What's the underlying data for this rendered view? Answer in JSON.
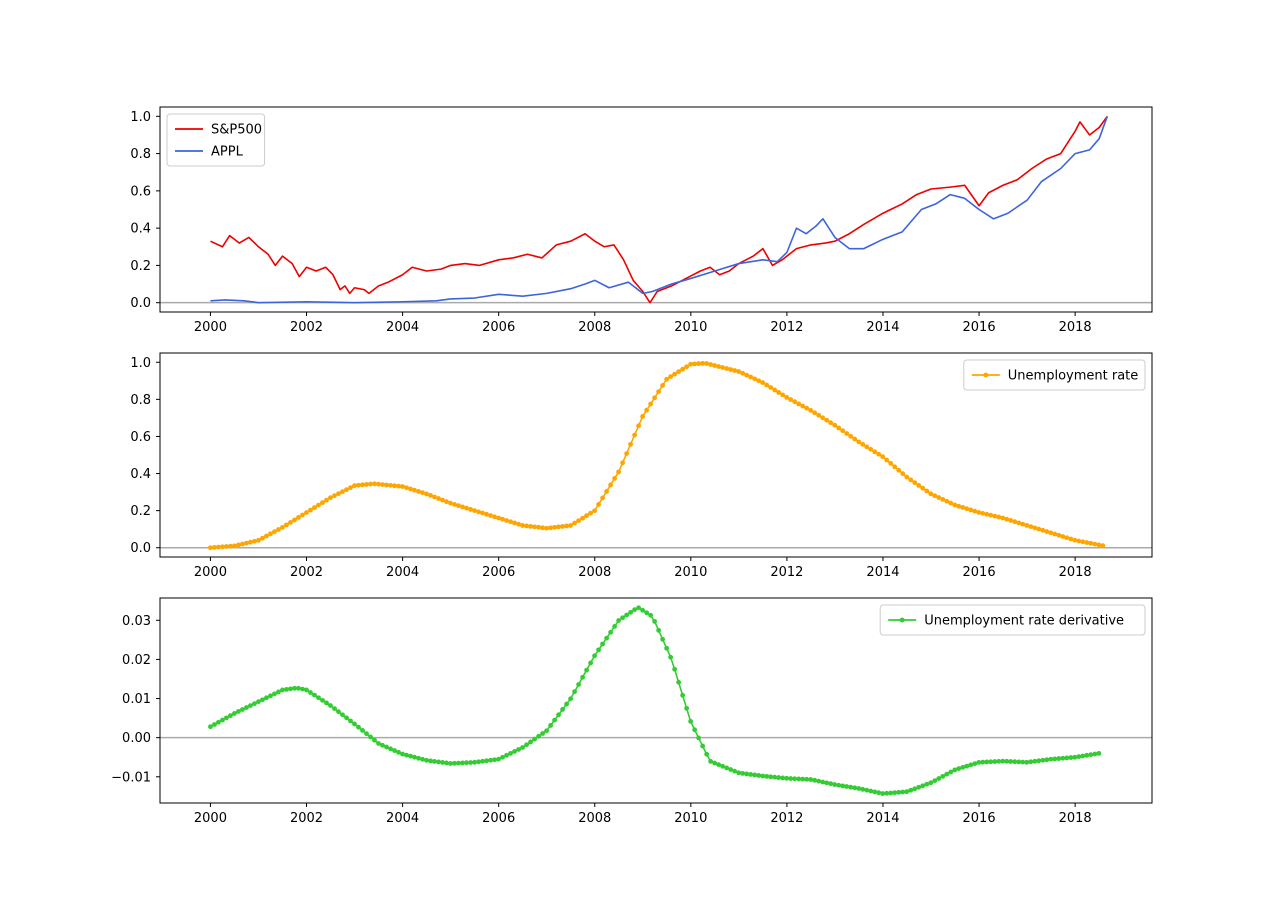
{
  "chart_data": [
    {
      "type": "line",
      "x_range": [
        1998.95,
        2019.6
      ],
      "ylim": [
        -0.05,
        1.05
      ],
      "x_ticks": [
        2000,
        2002,
        2004,
        2006,
        2008,
        2010,
        2012,
        2014,
        2016,
        2018
      ],
      "x_tick_labels": [
        "2000",
        "2002",
        "2004",
        "2006",
        "2008",
        "2010",
        "2012",
        "2014",
        "2016",
        "2018"
      ],
      "y_ticks": [
        0.0,
        0.2,
        0.4,
        0.6,
        0.8,
        1.0
      ],
      "y_tick_labels": [
        "0.0",
        "0.2",
        "0.4",
        "0.6",
        "0.8",
        "1.0"
      ],
      "reference_line_y": 0,
      "reference_line_color": "#aaaaaa",
      "legend_position": "upper-left",
      "series": [
        {
          "name": "S&P500",
          "color": "#ee0000",
          "marker": "none",
          "points": [
            [
              2000.0,
              0.33
            ],
            [
              2000.25,
              0.3
            ],
            [
              2000.4,
              0.36
            ],
            [
              2000.6,
              0.32
            ],
            [
              2000.8,
              0.35
            ],
            [
              2001.0,
              0.3
            ],
            [
              2001.2,
              0.26
            ],
            [
              2001.35,
              0.2
            ],
            [
              2001.5,
              0.25
            ],
            [
              2001.7,
              0.21
            ],
            [
              2001.85,
              0.14
            ],
            [
              2002.0,
              0.19
            ],
            [
              2002.2,
              0.17
            ],
            [
              2002.4,
              0.19
            ],
            [
              2002.55,
              0.15
            ],
            [
              2002.7,
              0.07
            ],
            [
              2002.8,
              0.09
            ],
            [
              2002.9,
              0.05
            ],
            [
              2003.0,
              0.08
            ],
            [
              2003.2,
              0.07
            ],
            [
              2003.3,
              0.05
            ],
            [
              2003.5,
              0.09
            ],
            [
              2003.7,
              0.11
            ],
            [
              2004.0,
              0.15
            ],
            [
              2004.2,
              0.19
            ],
            [
              2004.5,
              0.17
            ],
            [
              2004.8,
              0.18
            ],
            [
              2005.0,
              0.2
            ],
            [
              2005.3,
              0.21
            ],
            [
              2005.6,
              0.2
            ],
            [
              2006.0,
              0.23
            ],
            [
              2006.3,
              0.24
            ],
            [
              2006.6,
              0.26
            ],
            [
              2006.9,
              0.24
            ],
            [
              2007.2,
              0.31
            ],
            [
              2007.5,
              0.33
            ],
            [
              2007.8,
              0.37
            ],
            [
              2008.0,
              0.33
            ],
            [
              2008.2,
              0.3
            ],
            [
              2008.4,
              0.31
            ],
            [
              2008.6,
              0.23
            ],
            [
              2008.8,
              0.12
            ],
            [
              2009.0,
              0.06
            ],
            [
              2009.15,
              0.0
            ],
            [
              2009.3,
              0.06
            ],
            [
              2009.6,
              0.09
            ],
            [
              2009.9,
              0.13
            ],
            [
              2010.2,
              0.17
            ],
            [
              2010.4,
              0.19
            ],
            [
              2010.6,
              0.15
            ],
            [
              2010.8,
              0.17
            ],
            [
              2011.0,
              0.21
            ],
            [
              2011.3,
              0.25
            ],
            [
              2011.5,
              0.29
            ],
            [
              2011.7,
              0.2
            ],
            [
              2011.9,
              0.23
            ],
            [
              2012.2,
              0.29
            ],
            [
              2012.5,
              0.31
            ],
            [
              2012.8,
              0.32
            ],
            [
              2013.0,
              0.33
            ],
            [
              2013.3,
              0.37
            ],
            [
              2013.6,
              0.42
            ],
            [
              2014.0,
              0.48
            ],
            [
              2014.4,
              0.53
            ],
            [
              2014.7,
              0.58
            ],
            [
              2015.0,
              0.61
            ],
            [
              2015.4,
              0.62
            ],
            [
              2015.7,
              0.63
            ],
            [
              2016.0,
              0.52
            ],
            [
              2016.2,
              0.59
            ],
            [
              2016.5,
              0.63
            ],
            [
              2016.8,
              0.66
            ],
            [
              2017.1,
              0.72
            ],
            [
              2017.4,
              0.77
            ],
            [
              2017.7,
              0.8
            ],
            [
              2018.0,
              0.92
            ],
            [
              2018.1,
              0.97
            ],
            [
              2018.3,
              0.9
            ],
            [
              2018.5,
              0.94
            ],
            [
              2018.67,
              1.0
            ]
          ]
        },
        {
          "name": "APPL",
          "color": "#3c64dc",
          "marker": "none",
          "points": [
            [
              2000.0,
              0.01
            ],
            [
              2000.3,
              0.015
            ],
            [
              2000.7,
              0.01
            ],
            [
              2001.0,
              0.0
            ],
            [
              2002.0,
              0.005
            ],
            [
              2003.0,
              0.0
            ],
            [
              2004.0,
              0.005
            ],
            [
              2004.7,
              0.01
            ],
            [
              2005.0,
              0.02
            ],
            [
              2005.5,
              0.025
            ],
            [
              2006.0,
              0.045
            ],
            [
              2006.5,
              0.035
            ],
            [
              2007.0,
              0.05
            ],
            [
              2007.5,
              0.075
            ],
            [
              2007.8,
              0.1
            ],
            [
              2008.0,
              0.12
            ],
            [
              2008.3,
              0.08
            ],
            [
              2008.7,
              0.11
            ],
            [
              2009.0,
              0.05
            ],
            [
              2009.2,
              0.06
            ],
            [
              2009.6,
              0.1
            ],
            [
              2010.0,
              0.13
            ],
            [
              2010.5,
              0.17
            ],
            [
              2011.0,
              0.21
            ],
            [
              2011.5,
              0.23
            ],
            [
              2011.8,
              0.22
            ],
            [
              2012.0,
              0.27
            ],
            [
              2012.2,
              0.4
            ],
            [
              2012.4,
              0.37
            ],
            [
              2012.6,
              0.41
            ],
            [
              2012.75,
              0.45
            ],
            [
              2013.0,
              0.35
            ],
            [
              2013.3,
              0.29
            ],
            [
              2013.6,
              0.29
            ],
            [
              2014.0,
              0.34
            ],
            [
              2014.4,
              0.38
            ],
            [
              2014.8,
              0.5
            ],
            [
              2015.1,
              0.53
            ],
            [
              2015.4,
              0.58
            ],
            [
              2015.7,
              0.56
            ],
            [
              2016.0,
              0.5
            ],
            [
              2016.3,
              0.45
            ],
            [
              2016.6,
              0.48
            ],
            [
              2017.0,
              0.55
            ],
            [
              2017.3,
              0.65
            ],
            [
              2017.7,
              0.72
            ],
            [
              2018.0,
              0.8
            ],
            [
              2018.3,
              0.82
            ],
            [
              2018.5,
              0.88
            ],
            [
              2018.67,
              1.0
            ]
          ]
        }
      ]
    },
    {
      "type": "line",
      "x_range": [
        1998.95,
        2019.6
      ],
      "ylim": [
        -0.05,
        1.05
      ],
      "x_ticks": [
        2000,
        2002,
        2004,
        2006,
        2008,
        2010,
        2012,
        2014,
        2016,
        2018
      ],
      "x_tick_labels": [
        "2000",
        "2002",
        "2004",
        "2006",
        "2008",
        "2010",
        "2012",
        "2014",
        "2016",
        "2018"
      ],
      "y_ticks": [
        0.0,
        0.2,
        0.4,
        0.6,
        0.8,
        1.0
      ],
      "y_tick_labels": [
        "0.0",
        "0.2",
        "0.4",
        "0.6",
        "0.8",
        "1.0"
      ],
      "reference_line_y": 0,
      "reference_line_color": "#aaaaaa",
      "legend_position": "upper-right",
      "series": [
        {
          "name": "Unemployment rate",
          "color": "#ffa500",
          "marker": "point",
          "marker_interval": 0.0833,
          "points": [
            [
              2000.0,
              0.0
            ],
            [
              2000.5,
              0.01
            ],
            [
              2001.0,
              0.04
            ],
            [
              2001.5,
              0.11
            ],
            [
              2002.0,
              0.19
            ],
            [
              2002.5,
              0.27
            ],
            [
              2003.0,
              0.335
            ],
            [
              2003.4,
              0.345
            ],
            [
              2004.0,
              0.33
            ],
            [
              2004.5,
              0.29
            ],
            [
              2005.0,
              0.24
            ],
            [
              2005.5,
              0.2
            ],
            [
              2006.0,
              0.16
            ],
            [
              2006.5,
              0.12
            ],
            [
              2007.0,
              0.105
            ],
            [
              2007.5,
              0.12
            ],
            [
              2008.0,
              0.2
            ],
            [
              2008.5,
              0.41
            ],
            [
              2009.0,
              0.71
            ],
            [
              2009.5,
              0.91
            ],
            [
              2010.0,
              0.99
            ],
            [
              2010.3,
              0.995
            ],
            [
              2011.0,
              0.95
            ],
            [
              2011.5,
              0.89
            ],
            [
              2012.0,
              0.81
            ],
            [
              2012.5,
              0.74
            ],
            [
              2013.0,
              0.66
            ],
            [
              2013.5,
              0.57
            ],
            [
              2014.0,
              0.49
            ],
            [
              2014.5,
              0.38
            ],
            [
              2015.0,
              0.29
            ],
            [
              2015.5,
              0.23
            ],
            [
              2016.0,
              0.19
            ],
            [
              2016.5,
              0.16
            ],
            [
              2017.0,
              0.12
            ],
            [
              2017.5,
              0.08
            ],
            [
              2018.0,
              0.04
            ],
            [
              2018.6,
              0.01
            ]
          ]
        }
      ]
    },
    {
      "type": "line",
      "x_range": [
        1998.95,
        2019.6
      ],
      "ylim": [
        -0.0167,
        0.0357
      ],
      "x_ticks": [
        2000,
        2002,
        2004,
        2006,
        2008,
        2010,
        2012,
        2014,
        2016,
        2018
      ],
      "x_tick_labels": [
        "2000",
        "2002",
        "2004",
        "2006",
        "2008",
        "2010",
        "2012",
        "2014",
        "2016",
        "2018"
      ],
      "y_ticks": [
        -0.01,
        0.0,
        0.01,
        0.02,
        0.03
      ],
      "y_tick_labels": [
        "−0.01",
        "0.00",
        "0.01",
        "0.02",
        "0.03"
      ],
      "reference_line_y": 0,
      "reference_line_color": "#aaaaaa",
      "legend_position": "upper-right",
      "series": [
        {
          "name": "Unemployment rate derivative",
          "color": "#33cc33",
          "marker": "point",
          "marker_interval": 0.0833,
          "points": [
            [
              2000.0,
              0.0028
            ],
            [
              2000.5,
              0.0062
            ],
            [
              2001.0,
              0.0092
            ],
            [
              2001.5,
              0.0122
            ],
            [
              2001.8,
              0.0127
            ],
            [
              2002.0,
              0.0122
            ],
            [
              2002.5,
              0.0082
            ],
            [
              2003.0,
              0.0035
            ],
            [
              2003.5,
              -0.0015
            ],
            [
              2004.0,
              -0.0042
            ],
            [
              2004.5,
              -0.0058
            ],
            [
              2005.0,
              -0.0066
            ],
            [
              2005.5,
              -0.0063
            ],
            [
              2006.0,
              -0.0055
            ],
            [
              2006.5,
              -0.0025
            ],
            [
              2007.0,
              0.0018
            ],
            [
              2007.5,
              0.01
            ],
            [
              2008.0,
              0.021
            ],
            [
              2008.5,
              0.03
            ],
            [
              2008.9,
              0.0333
            ],
            [
              2009.2,
              0.031
            ],
            [
              2009.6,
              0.02
            ],
            [
              2010.0,
              0.004
            ],
            [
              2010.4,
              -0.006
            ],
            [
              2011.0,
              -0.009
            ],
            [
              2011.5,
              -0.0098
            ],
            [
              2012.0,
              -0.0104
            ],
            [
              2012.5,
              -0.0107
            ],
            [
              2013.0,
              -0.012
            ],
            [
              2013.5,
              -0.013
            ],
            [
              2014.0,
              -0.0143
            ],
            [
              2014.5,
              -0.0138
            ],
            [
              2015.0,
              -0.0115
            ],
            [
              2015.5,
              -0.0082
            ],
            [
              2016.0,
              -0.0063
            ],
            [
              2016.5,
              -0.006
            ],
            [
              2017.0,
              -0.0063
            ],
            [
              2017.5,
              -0.0055
            ],
            [
              2018.0,
              -0.005
            ],
            [
              2018.5,
              -0.004
            ]
          ]
        }
      ]
    }
  ]
}
